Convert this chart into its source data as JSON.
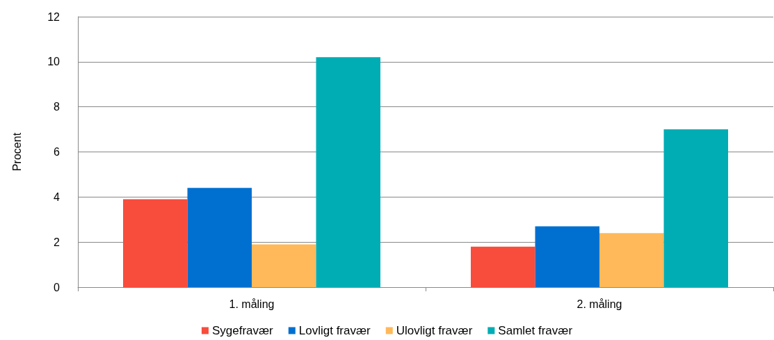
{
  "chart_data": {
    "type": "bar",
    "ylabel": "Procent",
    "categories": [
      "1. måling",
      "2. måling"
    ],
    "series": [
      {
        "name": "Sygefravær",
        "color": "#f84c3c",
        "values": [
          3.9,
          1.8
        ]
      },
      {
        "name": "Lovligt fravær",
        "color": "#0070d0",
        "values": [
          4.4,
          2.7
        ]
      },
      {
        "name": "Ulovligt fravær",
        "color": "#ffb95a",
        "values": [
          1.9,
          2.4
        ]
      },
      {
        "name": "Samlet fravær",
        "color": "#00adb5",
        "values": [
          10.2,
          7.0
        ]
      }
    ],
    "ylim": [
      0,
      12
    ],
    "yticks": [
      0,
      2,
      4,
      6,
      8,
      10,
      12
    ],
    "grid": "y",
    "legend": "bottom"
  }
}
